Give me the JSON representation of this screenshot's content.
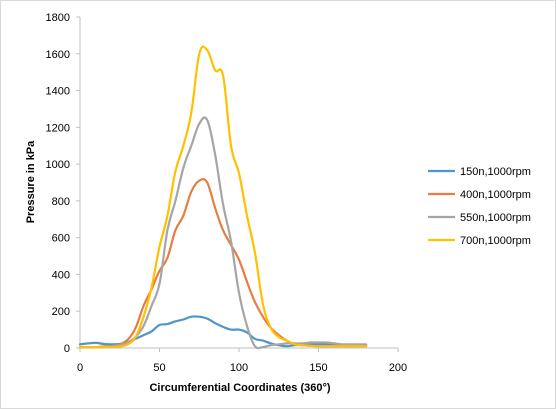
{
  "chart_data": {
    "type": "line",
    "title": "",
    "xlabel": "Circumferential Coordinates (360°)",
    "ylabel": "Pressure in kPa",
    "xlim": [
      0,
      200
    ],
    "ylim": [
      0,
      1800
    ],
    "xticks": [
      0,
      50,
      100,
      150,
      200
    ],
    "yticks": [
      0,
      200,
      400,
      600,
      800,
      1000,
      1200,
      1400,
      1600,
      1800
    ],
    "grid": false,
    "legend_position": "right",
    "series": [
      {
        "name": "150n,1000rpm",
        "color": "#4f94cd",
        "x": [
          0,
          5,
          10,
          15,
          20,
          25,
          30,
          35,
          40,
          45,
          50,
          55,
          60,
          65,
          70,
          75,
          80,
          85,
          90,
          95,
          100,
          105,
          110,
          115,
          120,
          125,
          130,
          135,
          140,
          145,
          150,
          155,
          160,
          165,
          170,
          175,
          180
        ],
        "y": [
          20,
          25,
          28,
          22,
          20,
          22,
          30,
          50,
          70,
          90,
          125,
          130,
          145,
          155,
          170,
          170,
          160,
          135,
          115,
          100,
          100,
          85,
          50,
          40,
          25,
          15,
          10,
          15,
          18,
          20,
          20,
          20,
          20,
          18,
          18,
          15,
          15
        ]
      },
      {
        "name": "400n,1000rpm",
        "color": "#e87d3e",
        "x": [
          0,
          5,
          10,
          15,
          20,
          25,
          30,
          35,
          40,
          45,
          50,
          55,
          60,
          65,
          70,
          75,
          80,
          85,
          90,
          95,
          100,
          105,
          110,
          115,
          120,
          125,
          130,
          135,
          140,
          145,
          150,
          155,
          160,
          165,
          170,
          175,
          180
        ],
        "y": [
          5,
          5,
          5,
          8,
          10,
          20,
          45,
          110,
          230,
          320,
          420,
          490,
          640,
          720,
          850,
          910,
          900,
          760,
          640,
          560,
          480,
          360,
          250,
          170,
          110,
          70,
          40,
          20,
          15,
          12,
          10,
          10,
          10,
          10,
          10,
          10,
          10
        ]
      },
      {
        "name": "550n,1000rpm",
        "color": "#a5a5a5",
        "x": [
          0,
          5,
          10,
          15,
          20,
          25,
          30,
          35,
          40,
          45,
          50,
          55,
          60,
          65,
          70,
          75,
          80,
          85,
          90,
          95,
          100,
          105,
          110,
          115,
          120,
          125,
          130,
          135,
          140,
          145,
          150,
          155,
          160,
          165,
          170,
          175,
          180
        ],
        "y": [
          5,
          5,
          5,
          5,
          10,
          15,
          30,
          60,
          120,
          230,
          350,
          640,
          800,
          980,
          1100,
          1220,
          1240,
          1050,
          780,
          580,
          300,
          120,
          10,
          5,
          15,
          20,
          25,
          25,
          25,
          30,
          30,
          30,
          25,
          20,
          20,
          20,
          20
        ]
      },
      {
        "name": "700n,1000rpm",
        "color": "#ffc000",
        "x": [
          0,
          5,
          10,
          15,
          20,
          25,
          30,
          35,
          40,
          45,
          50,
          55,
          60,
          65,
          70,
          75,
          80,
          85,
          90,
          95,
          100,
          105,
          110,
          115,
          120,
          125,
          130,
          135,
          140,
          145,
          150,
          155,
          160,
          165,
          170,
          175,
          180
        ],
        "y": [
          5,
          5,
          5,
          5,
          5,
          8,
          20,
          60,
          170,
          330,
          550,
          720,
          960,
          1100,
          1280,
          1600,
          1620,
          1510,
          1480,
          1100,
          950,
          720,
          520,
          240,
          110,
          60,
          40,
          20,
          15,
          12,
          10,
          10,
          10,
          10,
          10,
          10,
          10
        ]
      }
    ]
  }
}
